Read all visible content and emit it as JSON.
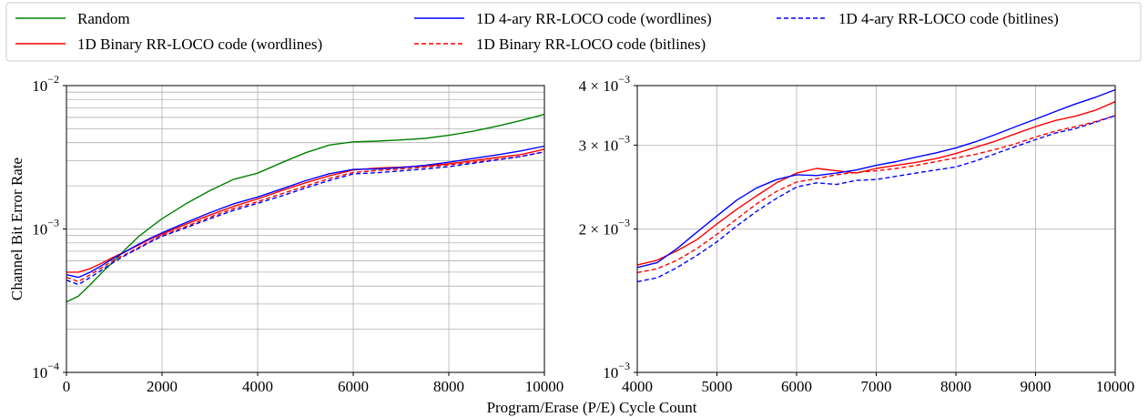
{
  "legend": {
    "entries": [
      {
        "label": "Random",
        "color": "#008000",
        "dash": "solid"
      },
      {
        "label": "1D Binary RR-LOCO code (wordlines)",
        "color": "#ff0000",
        "dash": "solid"
      },
      {
        "label": "1D 4-ary RR-LOCO code (wordlines)",
        "color": "#0000ff",
        "dash": "solid"
      },
      {
        "label": "1D Binary RR-LOCO code (bitlines)",
        "color": "#ff0000",
        "dash": "dashed"
      },
      {
        "label": "1D 4-ary RR-LOCO code (bitlines)",
        "color": "#0000ff",
        "dash": "dashed"
      }
    ]
  },
  "shared_xlabel": "Program/Erase (P/E) Cycle Count",
  "chart_data": [
    {
      "type": "line",
      "xlabel": "",
      "ylabel": "Channel Bit Error Rate",
      "yscale": "log",
      "xlim": [
        0,
        10000
      ],
      "ylim": [
        0.0001,
        0.01
      ],
      "xticks": [
        "0",
        "2000",
        "4000",
        "6000",
        "8000",
        "10000"
      ],
      "yticks": [
        {
          "base": "10",
          "exp": "−4"
        },
        {
          "base": "10",
          "exp": "−3"
        },
        {
          "base": "10",
          "exp": "−2"
        }
      ],
      "grid": true,
      "x": [
        0,
        250,
        500,
        750,
        1000,
        1250,
        1500,
        1750,
        2000,
        2500,
        3000,
        3500,
        4000,
        4500,
        5000,
        5500,
        6000,
        6500,
        7000,
        7500,
        8000,
        8500,
        9000,
        9500,
        10000
      ],
      "series": [
        {
          "name": "Random",
          "color": "#008000",
          "dash": "solid",
          "values": [
            0.00031,
            0.00034,
            0.00041,
            0.0005,
            0.0006,
            0.00073,
            0.00088,
            0.00102,
            0.00118,
            0.0015,
            0.00185,
            0.00222,
            0.00245,
            0.0029,
            0.0034,
            0.00385,
            0.00405,
            0.0041,
            0.00418,
            0.00428,
            0.0045,
            0.0048,
            0.0052,
            0.0057,
            0.0063
          ]
        },
        {
          "name": "1D Binary RR-LOCO code (wordlines)",
          "color": "#ff0000",
          "dash": "solid",
          "values": [
            0.0005,
            0.0005,
            0.00053,
            0.00058,
            0.00064,
            0.0007,
            0.00077,
            0.00085,
            0.00092,
            0.00108,
            0.00125,
            0.00144,
            0.00162,
            0.00185,
            0.0021,
            0.00235,
            0.00258,
            0.00266,
            0.0027,
            0.00275,
            0.00285,
            0.003,
            0.00315,
            0.0033,
            0.0036
          ]
        },
        {
          "name": "1D 4-ary RR-LOCO code (wordlines)",
          "color": "#0000ff",
          "dash": "solid",
          "values": [
            0.00048,
            0.00046,
            0.0005,
            0.00056,
            0.00063,
            0.0007,
            0.00078,
            0.00086,
            0.00094,
            0.00111,
            0.0013,
            0.0015,
            0.00167,
            0.0019,
            0.00217,
            0.00243,
            0.0026,
            0.00262,
            0.00268,
            0.00278,
            0.00292,
            0.0031,
            0.00328,
            0.0035,
            0.00378
          ]
        },
        {
          "name": "1D Binary RR-LOCO code (bitlines)",
          "color": "#ff0000",
          "dash": "dashed",
          "values": [
            0.00046,
            0.00043,
            0.00048,
            0.00054,
            0.00061,
            0.00067,
            0.00074,
            0.00082,
            0.0009,
            0.00104,
            0.00121,
            0.00139,
            0.00155,
            0.00176,
            0.00199,
            0.00225,
            0.00248,
            0.00256,
            0.00262,
            0.0027,
            0.0028,
            0.00292,
            0.00305,
            0.0032,
            0.00345
          ]
        },
        {
          "name": "1D 4-ary RR-LOCO code (bitlines)",
          "color": "#0000ff",
          "dash": "dashed",
          "values": [
            0.00044,
            0.00041,
            0.00046,
            0.00052,
            0.00059,
            0.00066,
            0.00073,
            0.00081,
            0.00089,
            0.00102,
            0.00118,
            0.00135,
            0.00151,
            0.0017,
            0.00193,
            0.00218,
            0.00242,
            0.00247,
            0.00254,
            0.00262,
            0.00272,
            0.00287,
            0.00303,
            0.0032,
            0.00345
          ]
        }
      ]
    },
    {
      "type": "line",
      "xlabel": "",
      "ylabel": "",
      "yscale": "log",
      "xlim": [
        4000,
        10000
      ],
      "ylim": [
        0.001,
        0.004
      ],
      "xticks": [
        "4000",
        "5000",
        "6000",
        "7000",
        "8000",
        "9000",
        "10000"
      ],
      "yticks": [
        {
          "base": "10",
          "exp": "−3"
        },
        {
          "base": "2 × 10",
          "exp": "−3"
        },
        {
          "base": "3 × 10",
          "exp": "−3"
        },
        {
          "base": "4 × 10",
          "exp": "−3"
        }
      ],
      "grid": true,
      "x": [
        4000,
        4250,
        4500,
        4750,
        5000,
        5250,
        5500,
        5750,
        6000,
        6250,
        6500,
        6750,
        7000,
        7250,
        7500,
        7750,
        8000,
        8250,
        8500,
        8750,
        9000,
        9250,
        9500,
        9750,
        10000
      ],
      "series": [
        {
          "name": "1D Binary RR-LOCO code (wordlines)",
          "color": "#ff0000",
          "dash": "solid",
          "values": [
            0.00168,
            0.00172,
            0.0018,
            0.0019,
            0.00205,
            0.0022,
            0.00235,
            0.0025,
            0.00262,
            0.00268,
            0.00265,
            0.00262,
            0.00268,
            0.00272,
            0.00276,
            0.00281,
            0.00288,
            0.00297,
            0.00306,
            0.00317,
            0.00328,
            0.00338,
            0.00345,
            0.00355,
            0.0037
          ]
        },
        {
          "name": "1D 4-ary RR-LOCO code (wordlines)",
          "color": "#0000ff",
          "dash": "solid",
          "values": [
            0.00166,
            0.0017,
            0.00182,
            0.00197,
            0.00213,
            0.0023,
            0.00244,
            0.00254,
            0.0026,
            0.00259,
            0.00262,
            0.00266,
            0.00272,
            0.00277,
            0.00283,
            0.00289,
            0.00296,
            0.00305,
            0.00316,
            0.00328,
            0.0034,
            0.00353,
            0.00366,
            0.00378,
            0.00392
          ]
        },
        {
          "name": "1D Binary RR-LOCO code (bitlines)",
          "color": "#ff0000",
          "dash": "dashed",
          "values": [
            0.00162,
            0.00165,
            0.00172,
            0.00182,
            0.00195,
            0.0021,
            0.00226,
            0.0024,
            0.00251,
            0.00255,
            0.0026,
            0.00263,
            0.00265,
            0.00268,
            0.00272,
            0.00277,
            0.00282,
            0.00287,
            0.00294,
            0.00302,
            0.00312,
            0.00321,
            0.00328,
            0.00336,
            0.00346
          ]
        },
        {
          "name": "1D 4-ary RR-LOCO code (bitlines)",
          "color": "#0000ff",
          "dash": "dashed",
          "values": [
            0.00155,
            0.00158,
            0.00166,
            0.00176,
            0.00188,
            0.00203,
            0.00218,
            0.00232,
            0.00245,
            0.0025,
            0.00248,
            0.00253,
            0.00254,
            0.00258,
            0.00262,
            0.00266,
            0.0027,
            0.00278,
            0.00288,
            0.00298,
            0.00308,
            0.00318,
            0.00325,
            0.00335,
            0.00346
          ]
        }
      ]
    }
  ]
}
